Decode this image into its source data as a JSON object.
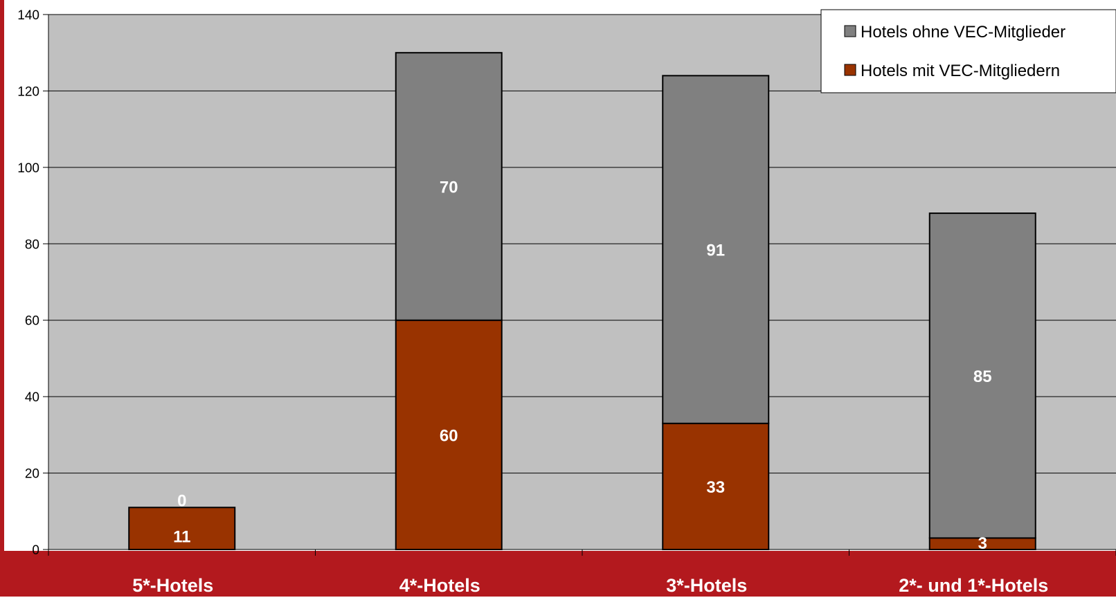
{
  "colors": {
    "page_frame": "#b3191e",
    "plot_background": "#c0c0c0",
    "gridline": "#000000",
    "series_mit": "#993300",
    "series_ohne": "#808080",
    "legend_background": "#ffffff",
    "data_label": "#ffffff",
    "category_label": "#ffffff"
  },
  "chart_data": {
    "type": "bar",
    "stacked": true,
    "categories": [
      "5*-Hotels",
      "4*-Hotels",
      "3*-Hotels",
      "2*- und 1*-Hotels"
    ],
    "series": [
      {
        "name": "Hotels mit VEC-Mitgliedern",
        "values": [
          11,
          60,
          33,
          3
        ]
      },
      {
        "name": "Hotels ohne VEC-Mitglieder",
        "values": [
          0,
          70,
          91,
          85
        ]
      }
    ],
    "yticks": [
      "0",
      "20",
      "40",
      "60",
      "80",
      "100",
      "120",
      "140"
    ],
    "ylim": [
      0,
      140
    ],
    "grid": true,
    "legend_position": "top-right",
    "legend_order": [
      1,
      0
    ],
    "data_labels": true
  }
}
